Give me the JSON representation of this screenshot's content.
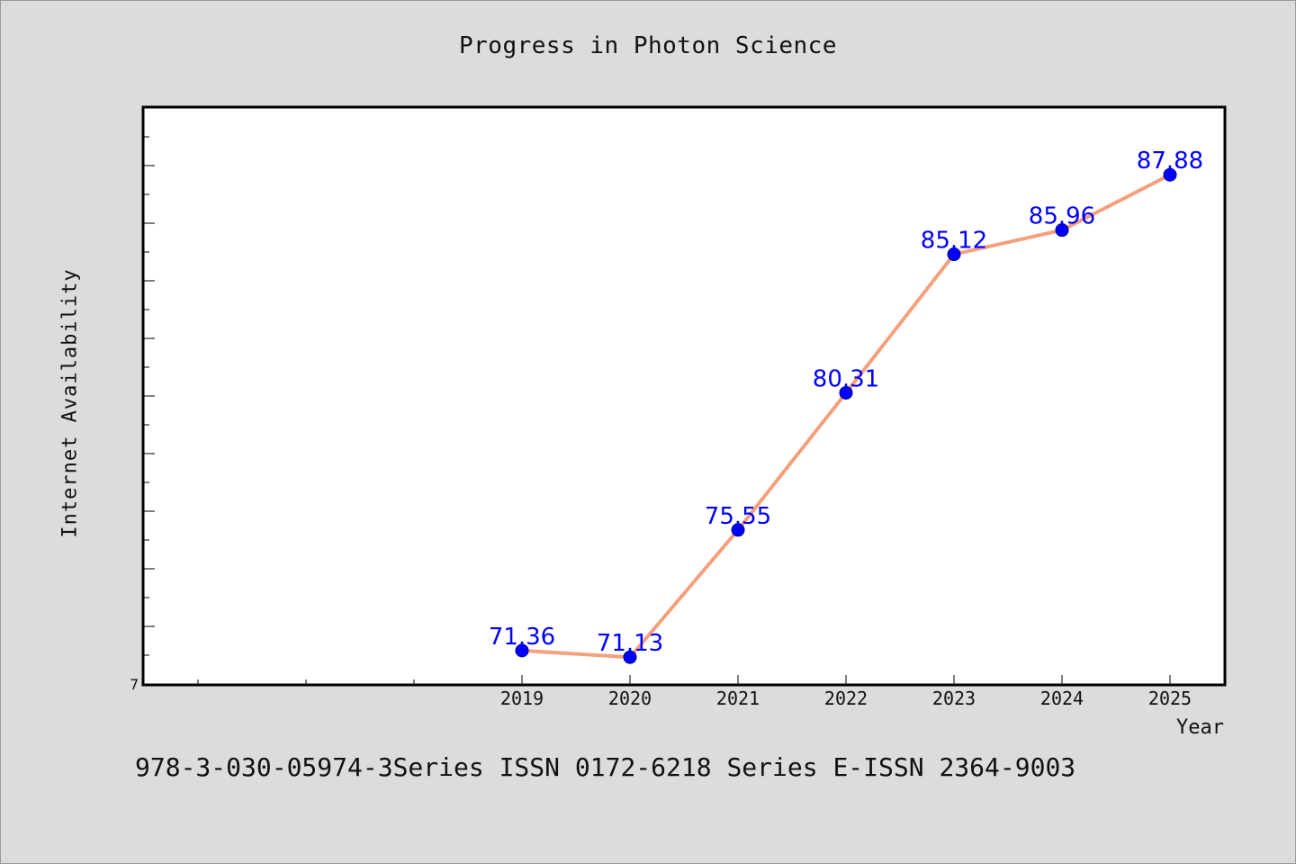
{
  "chart_data": {
    "type": "line",
    "title": "Progress in Photon Science",
    "xlabel": "Year",
    "ylabel": "Internet Availability",
    "categories": [
      "2019",
      "2020",
      "2021",
      "2022",
      "2023",
      "2024",
      "2025"
    ],
    "series": [
      {
        "values": [
          71.36,
          71.13,
          75.55,
          80.31,
          85.12,
          85.96,
          87.88
        ],
        "labels": [
          "71.36",
          "71.13",
          "75.55",
          "80.31",
          "85.12",
          "85.96",
          "87.88"
        ]
      }
    ],
    "y_tick_labels": [
      "7"
    ],
    "ylim": [
      70.2,
      90.2
    ],
    "grid": false,
    "colors": {
      "line": "#f4a07c",
      "marker": "#0000ff",
      "data_label": "#0000ff",
      "plot_background": "#ffffff",
      "page_background": "#dcdcdc"
    }
  },
  "footer": {
    "text": "978-3-030-05974-3Series ISSN 0172-6218 Series E-ISSN 2364-9003"
  }
}
